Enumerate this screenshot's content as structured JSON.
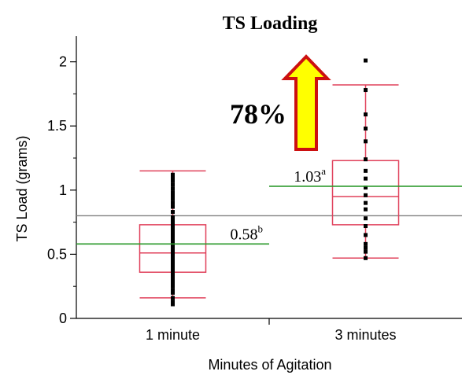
{
  "colors": {
    "box": "#e0405a",
    "mean_line": "#2a9a2a",
    "grand_mean_line": "#808080",
    "points": "#000000",
    "arrow_fill": "#ffff00",
    "arrow_stroke": "#cc1010",
    "axis": "#000000"
  },
  "chart_data": {
    "type": "box",
    "title": "TS Loading",
    "xlabel": "Minutes of Agitation",
    "ylabel": "TS Load (grams)",
    "ylim": [
      0,
      2.2
    ],
    "yticks": [
      0,
      0.5,
      1,
      1.5,
      2
    ],
    "ytick_labels": [
      "0",
      "0.5",
      "1",
      "1.5",
      "2"
    ],
    "categories": [
      "1 minute",
      "3 minutes"
    ],
    "grand_mean": 0.8,
    "groups": [
      {
        "category": "1 minute",
        "whisker_low": 0.16,
        "q1": 0.36,
        "median": 0.51,
        "q3": 0.73,
        "whisker_high": 1.15,
        "mean": 0.58,
        "mean_label": "0.58",
        "mean_letter": "b",
        "points": [
          0.11,
          0.13,
          0.16,
          0.2,
          0.22,
          0.25,
          0.27,
          0.29,
          0.31,
          0.33,
          0.35,
          0.37,
          0.39,
          0.41,
          0.43,
          0.45,
          0.47,
          0.49,
          0.51,
          0.53,
          0.55,
          0.57,
          0.59,
          0.61,
          0.63,
          0.65,
          0.67,
          0.69,
          0.71,
          0.73,
          0.76,
          0.79,
          0.83,
          0.87,
          0.9,
          0.93,
          0.95,
          0.98,
          1.01,
          1.04,
          1.07,
          1.1,
          1.12
        ]
      },
      {
        "category": "3 minutes",
        "whisker_low": 0.47,
        "q1": 0.73,
        "median": 0.95,
        "q3": 1.23,
        "whisker_high": 1.82,
        "mean": 1.03,
        "mean_label": "1.03",
        "mean_letter": "a",
        "points": [
          0.47,
          0.52,
          0.55,
          0.58,
          0.65,
          0.72,
          0.78,
          0.85,
          0.9,
          0.96,
          1.02,
          1.09,
          1.15,
          1.24,
          1.38,
          1.48,
          1.59,
          1.78,
          2.01
        ]
      }
    ]
  },
  "annotation": {
    "text": "78%",
    "direction": "up-arrow"
  }
}
